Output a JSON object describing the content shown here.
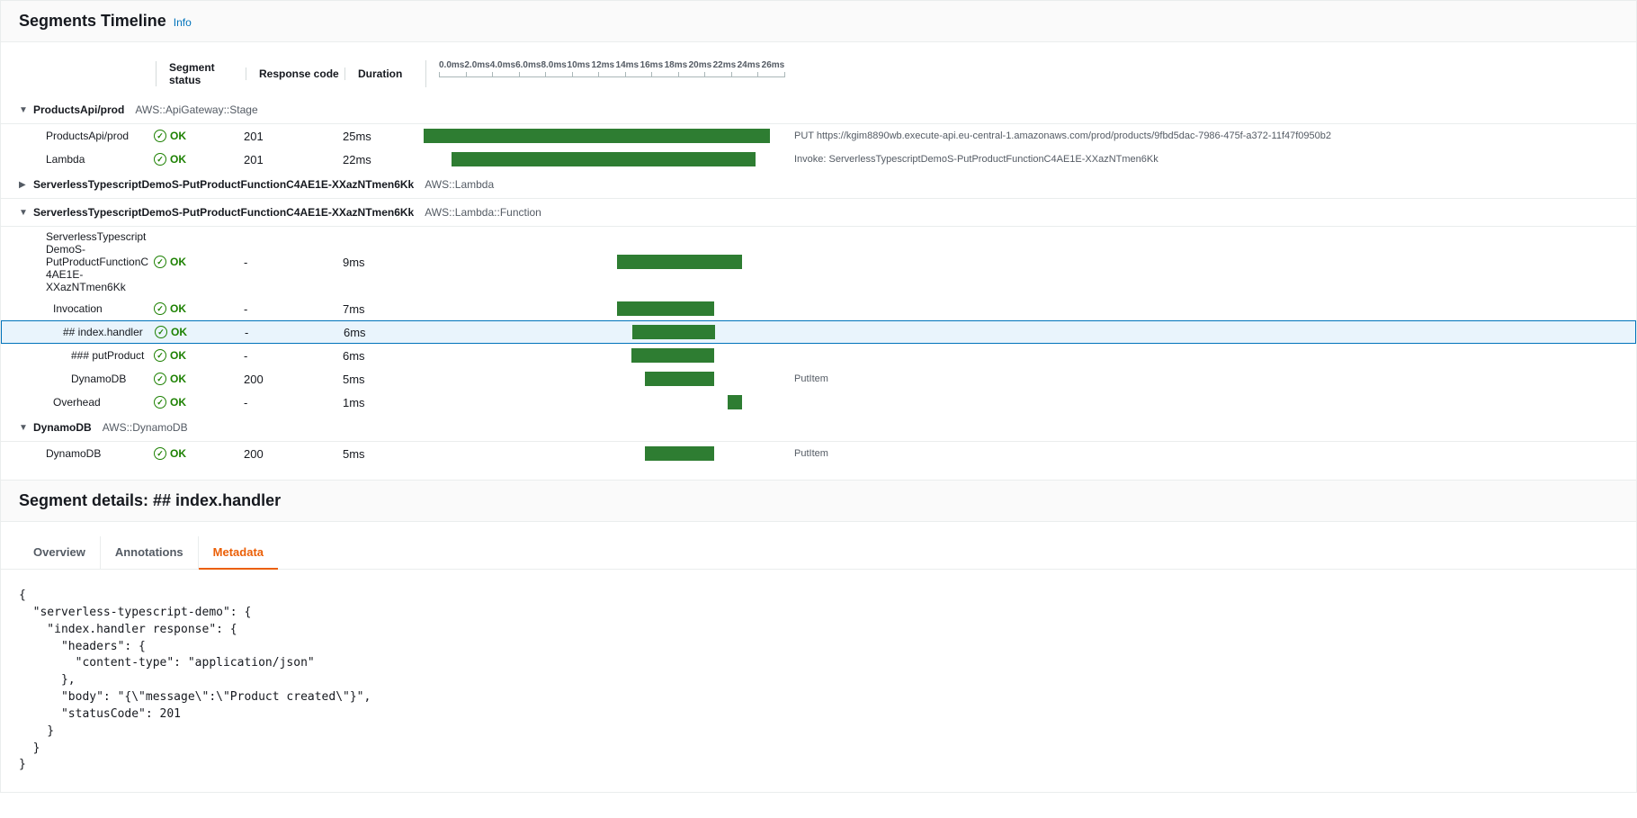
{
  "header": {
    "title": "Segments Timeline",
    "info": "Info"
  },
  "columns": {
    "status": "Segment status",
    "code": "Response code",
    "duration": "Duration"
  },
  "axis": {
    "max_ms": 26,
    "ticks": [
      "0.0ms",
      "2.0ms",
      "4.0ms",
      "6.0ms",
      "8.0ms",
      "10ms",
      "12ms",
      "14ms",
      "16ms",
      "18ms",
      "20ms",
      "22ms",
      "24ms",
      "26ms"
    ]
  },
  "ok_text": "OK",
  "bar_color": "#2E7D32",
  "groups": [
    {
      "expanded": true,
      "name": "ProductsApi/prod",
      "type": "AWS::ApiGateway::Stage",
      "rows": [
        {
          "indent": 1,
          "name": "ProductsApi/prod",
          "status": "OK",
          "code": "201",
          "duration": "25ms",
          "start": 0,
          "len": 25,
          "label": "PUT https://kgim8890wb.execute-api.eu-central-1.amazonaws.com/prod/products/9fbd5dac-7986-475f-a372-11f47f0950b2"
        },
        {
          "indent": 1,
          "name": "Lambda",
          "status": "OK",
          "code": "201",
          "duration": "22ms",
          "start": 2,
          "len": 22,
          "label": "Invoke: ServerlessTypescriptDemoS-PutProductFunctionC4AE1E-XXazNTmen6Kk"
        }
      ]
    },
    {
      "expanded": false,
      "name": "ServerlessTypescriptDemoS-PutProductFunctionC4AE1E-XXazNTmen6Kk",
      "type": "AWS::Lambda",
      "rows": []
    },
    {
      "expanded": true,
      "name": "ServerlessTypescriptDemoS-PutProductFunctionC4AE1E-XXazNTmen6Kk",
      "type": "AWS::Lambda::Function",
      "rows": [
        {
          "indent": 1,
          "name": "ServerlessTypescriptDemoS-PutProductFunctionC4AE1E-XXazNTmen6Kk",
          "status": "OK",
          "code": "-",
          "duration": "9ms",
          "start": 14,
          "len": 9,
          "label": ""
        },
        {
          "indent": 2,
          "name": "Invocation",
          "status": "OK",
          "code": "-",
          "duration": "7ms",
          "start": 14,
          "len": 7,
          "label": ""
        },
        {
          "indent": 3,
          "name": "## index.handler",
          "status": "OK",
          "code": "-",
          "duration": "6ms",
          "start": 15,
          "len": 6,
          "label": "",
          "selected": true
        },
        {
          "indent": 4,
          "name": "### putProduct",
          "status": "OK",
          "code": "-",
          "duration": "6ms",
          "start": 15,
          "len": 6,
          "label": ""
        },
        {
          "indent": 4,
          "name": "DynamoDB",
          "status": "OK",
          "code": "200",
          "duration": "5ms",
          "start": 16,
          "len": 5,
          "label": "PutItem"
        },
        {
          "indent": 2,
          "name": "Overhead",
          "status": "OK",
          "code": "-",
          "duration": "1ms",
          "start": 22,
          "len": 1,
          "label": ""
        }
      ]
    },
    {
      "expanded": true,
      "name": "DynamoDB",
      "type": "AWS::DynamoDB",
      "rows": [
        {
          "indent": 1,
          "name": "DynamoDB",
          "status": "OK",
          "code": "200",
          "duration": "5ms",
          "start": 16,
          "len": 5,
          "label": "PutItem"
        }
      ]
    }
  ],
  "details": {
    "title": "Segment details: ## index.handler",
    "tabs": {
      "overview": "Overview",
      "annotations": "Annotations",
      "metadata": "Metadata",
      "active": "metadata"
    },
    "metadata_json": "{\n  \"serverless-typescript-demo\": {\n    \"index.handler response\": {\n      \"headers\": {\n        \"content-type\": \"application/json\"\n      },\n      \"body\": \"{\\\"message\\\":\\\"Product created\\\"}\",\n      \"statusCode\": 201\n    }\n  }\n}"
  }
}
